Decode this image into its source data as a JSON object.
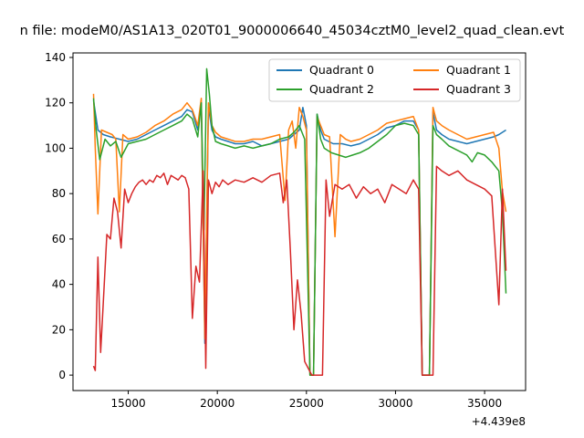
{
  "chart_data": {
    "type": "line",
    "title": "n file: modeM0/AS1A13_020T01_9000006640_45034cztM0_level2_quad_clean.evt",
    "xlabel": "",
    "ylabel": "",
    "x_offset_label": "+4.439e8",
    "xlim": [
      11900,
      37300
    ],
    "ylim": [
      -6.8,
      142
    ],
    "x_ticks": [
      15000,
      20000,
      25000,
      30000,
      35000
    ],
    "x_tick_labels": [
      "15000",
      "20000",
      "25000",
      "30000",
      "35000"
    ],
    "y_ticks": [
      0,
      20,
      40,
      60,
      80,
      100,
      120,
      140
    ],
    "y_tick_labels": [
      "0",
      "20",
      "40",
      "60",
      "80",
      "100",
      "120",
      "140"
    ],
    "grid": false,
    "legend_position": "top-right",
    "series": [
      {
        "name": "Quadrant 0",
        "color": "#1f77b4",
        "x": [
          13050,
          13300,
          13600,
          14000,
          14500,
          15000,
          15500,
          16000,
          16500,
          17000,
          17500,
          18000,
          18300,
          18600,
          18900,
          19100,
          19300,
          19500,
          19700,
          19900,
          20200,
          20600,
          21000,
          21500,
          22000,
          22500,
          23000,
          23500,
          24000,
          24300,
          24600,
          24800,
          25000,
          25200,
          25400,
          25600,
          25800,
          26000,
          26500,
          27000,
          27500,
          28000,
          28500,
          29000,
          29500,
          30000,
          30500,
          31000,
          31300,
          31500,
          31700,
          31900,
          32100,
          32300,
          32600,
          33000,
          33500,
          34000,
          34500,
          35000,
          35500,
          35800,
          36000,
          36200
        ],
        "y": [
          121,
          108,
          106,
          105,
          104,
          103,
          104,
          106,
          108,
          110,
          112,
          114,
          117,
          116,
          108,
          120,
          14,
          118,
          108,
          105,
          104,
          103,
          102,
          102,
          103,
          101,
          102,
          103,
          104,
          106,
          108,
          118,
          110,
          0,
          0,
          115,
          108,
          104,
          102,
          102,
          101,
          102,
          104,
          106,
          109,
          110,
          112,
          112,
          108,
          0,
          0,
          0,
          116,
          108,
          106,
          104,
          103,
          102,
          103,
          104,
          105,
          106,
          107,
          108
        ]
      },
      {
        "name": "Quadrant 1",
        "color": "#ff7f0e",
        "x": [
          13050,
          13150,
          13300,
          13500,
          13800,
          14100,
          14300,
          14500,
          14700,
          15000,
          15500,
          16000,
          16500,
          17000,
          17500,
          18000,
          18300,
          18600,
          18900,
          19100,
          19300,
          19500,
          19700,
          19900,
          20200,
          20600,
          21000,
          21500,
          22000,
          22500,
          23000,
          23500,
          23800,
          24000,
          24200,
          24400,
          24600,
          24800,
          25000,
          25200,
          25400,
          25600,
          25800,
          26000,
          26300,
          26600,
          26900,
          27200,
          27500,
          28000,
          28500,
          29000,
          29500,
          30000,
          30500,
          31000,
          31300,
          31500,
          31700,
          31900,
          32100,
          32300,
          32600,
          33000,
          33500,
          34000,
          34500,
          35000,
          35500,
          35800,
          36000,
          36200
        ],
        "y": [
          124,
          100,
          71,
          108,
          107,
          106,
          104,
          72,
          106,
          104,
          105,
          107,
          110,
          112,
          115,
          117,
          120,
          117,
          110,
          122,
          16,
          120,
          110,
          107,
          105,
          104,
          103,
          103,
          104,
          104,
          105,
          106,
          77,
          108,
          112,
          100,
          118,
          114,
          108,
          0,
          0,
          114,
          110,
          106,
          105,
          61,
          106,
          104,
          103,
          104,
          106,
          108,
          111,
          112,
          113,
          114,
          108,
          0,
          0,
          0,
          118,
          112,
          110,
          108,
          106,
          104,
          105,
          106,
          107,
          100,
          81,
          72
        ]
      },
      {
        "name": "Quadrant 2",
        "color": "#2ca02c",
        "x": [
          13050,
          13200,
          13400,
          13700,
          14000,
          14300,
          14600,
          15000,
          15500,
          16000,
          16500,
          17000,
          17500,
          18000,
          18300,
          18600,
          18900,
          19100,
          19250,
          19400,
          19550,
          19700,
          19900,
          20200,
          20600,
          21000,
          21500,
          22000,
          22500,
          23000,
          23500,
          24000,
          24300,
          24600,
          24900,
          25200,
          25400,
          25600,
          25800,
          26000,
          26400,
          26800,
          27200,
          27600,
          28000,
          28500,
          29000,
          29500,
          30000,
          30500,
          31000,
          31300,
          31500,
          31700,
          31900,
          32100,
          32300,
          32600,
          33000,
          33500,
          34000,
          34300,
          34600,
          35000,
          35400,
          35800,
          36000,
          36200
        ],
        "y": [
          122,
          108,
          95,
          104,
          101,
          103,
          96,
          102,
          103,
          104,
          106,
          108,
          110,
          112,
          115,
          113,
          105,
          120,
          64,
          135,
          124,
          110,
          103,
          102,
          101,
          100,
          101,
          100,
          101,
          102,
          104,
          105,
          107,
          110,
          104,
          0,
          0,
          115,
          104,
          100,
          98,
          97,
          96,
          97,
          98,
          100,
          103,
          106,
          110,
          111,
          110,
          106,
          0,
          0,
          0,
          110,
          106,
          104,
          101,
          99,
          97,
          94,
          98,
          97,
          94,
          90,
          72,
          36
        ]
      },
      {
        "name": "Quadrant 3",
        "color": "#d62728",
        "x": [
          13050,
          13150,
          13300,
          13450,
          13600,
          13800,
          14000,
          14200,
          14400,
          14600,
          14800,
          15000,
          15200,
          15400,
          15600,
          15800,
          16000,
          16200,
          16400,
          16600,
          16800,
          17000,
          17200,
          17400,
          17600,
          17800,
          18000,
          18200,
          18400,
          18600,
          18800,
          19000,
          19200,
          19350,
          19500,
          19700,
          19900,
          20100,
          20300,
          20600,
          21000,
          21500,
          22000,
          22500,
          23000,
          23500,
          23700,
          23900,
          24100,
          24300,
          24500,
          24700,
          24900,
          25100,
          25300,
          25500,
          25700,
          25900,
          26100,
          26300,
          26600,
          27000,
          27400,
          27800,
          28200,
          28600,
          29000,
          29400,
          29800,
          30200,
          30600,
          31000,
          31300,
          31500,
          31700,
          31900,
          32100,
          32300,
          32600,
          33000,
          33500,
          34000,
          34500,
          35000,
          35400,
          35800,
          36000,
          36200
        ],
        "y": [
          4,
          2,
          52,
          10,
          32,
          62,
          60,
          78,
          72,
          56,
          82,
          76,
          80,
          83,
          85,
          86,
          84,
          86,
          85,
          88,
          87,
          89,
          84,
          88,
          87,
          86,
          88,
          87,
          82,
          25,
          48,
          41,
          90,
          3,
          86,
          80,
          85,
          83,
          86,
          84,
          86,
          85,
          87,
          85,
          88,
          89,
          76,
          86,
          55,
          20,
          42,
          27,
          6,
          3,
          0,
          0,
          0,
          0,
          86,
          70,
          84,
          82,
          84,
          78,
          83,
          80,
          82,
          76,
          84,
          82,
          80,
          86,
          82,
          0,
          0,
          0,
          0,
          92,
          90,
          88,
          90,
          86,
          84,
          82,
          79,
          31,
          82,
          46
        ]
      }
    ]
  }
}
